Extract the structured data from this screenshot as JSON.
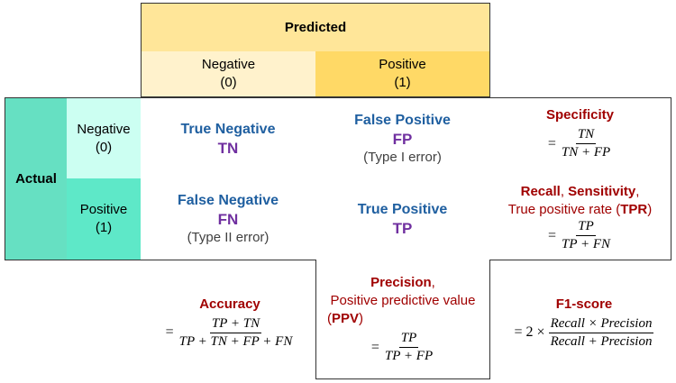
{
  "colors": {
    "predicted_header": "#ffe699",
    "predicted_negative": "#fff2cc",
    "predicted_positive": "#ffd966",
    "actual_header": "#66e0c2",
    "actual_negative": "#ccfff2",
    "actual_positive": "#5ee8c8",
    "cell_label": "#1f5fa0",
    "abbrev": "#7030a0",
    "metric": "#a00000"
  },
  "header": {
    "predicted": "Predicted",
    "actual": "Actual"
  },
  "predicted": {
    "negative": {
      "label": "Negative",
      "value": "(0)"
    },
    "positive": {
      "label": "Positive",
      "value": "(1)"
    }
  },
  "actual": {
    "negative": {
      "label": "Negative",
      "value": "(0)"
    },
    "positive": {
      "label": "Positive",
      "value": "(1)"
    }
  },
  "cells": {
    "tn": {
      "name": "True Negative",
      "abbr": "TN"
    },
    "fp": {
      "name": "False Positive",
      "abbr": "FP",
      "note": "(Type I error)"
    },
    "fn": {
      "name": "False Negative",
      "abbr": "FN",
      "note": "(Type II error)"
    },
    "tp": {
      "name": "True Positive",
      "abbr": "TP"
    }
  },
  "metrics": {
    "specificity": {
      "title": "Specificity",
      "eq": "=",
      "num": "TN",
      "den": "TN + FP"
    },
    "recall": {
      "title_a": "Recall",
      "sep_a": ", ",
      "title_b": "Sensitivity",
      "sep_b": ",",
      "line2_a": "True positive rate (",
      "line2_b": "TPR",
      "line2_c": ")",
      "eq": "=",
      "num": "TP",
      "den": "TP + FN"
    },
    "accuracy": {
      "title": "Accuracy",
      "eq": "=",
      "num": "TP + TN",
      "den": "TP + TN + FP + FN"
    },
    "precision": {
      "title": "Precision",
      "sep": ",",
      "line2": "Positive predictive value",
      "line3_a": "(",
      "line3_b": "PPV",
      "line3_c": ")",
      "eq": "=",
      "num": "TP",
      "den": "TP + FP"
    },
    "f1": {
      "title": "F1-score",
      "eq": "= 2 ×",
      "num": "Recall × Precision",
      "den": "Recall + Precision"
    }
  }
}
